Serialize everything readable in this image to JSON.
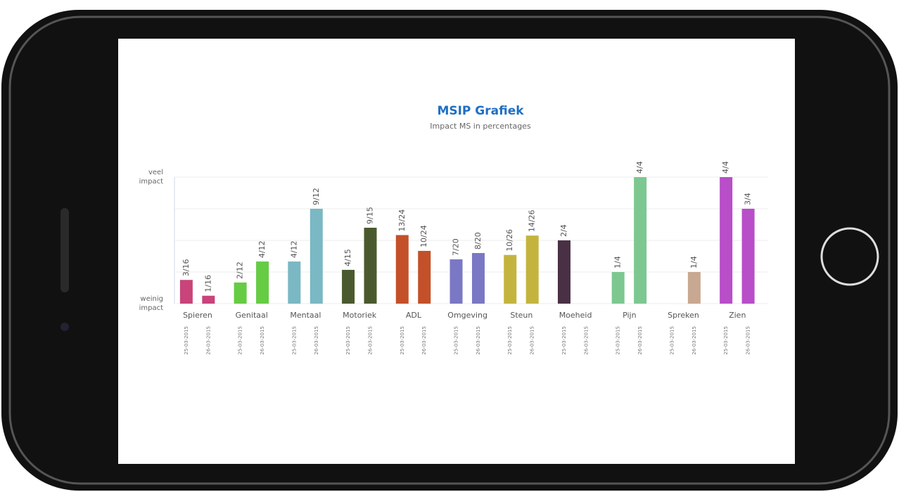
{
  "chart_data": {
    "type": "bar",
    "title": "MSIP Grafiek",
    "subtitle": "Impact MS in percentages",
    "categories": [
      "Spieren",
      "Genitaal",
      "Mentaal",
      "Motoriek",
      "ADL",
      "Omgeving",
      "Steun",
      "Moeheid",
      "Pijn",
      "Spreken",
      "Zien"
    ],
    "colors": [
      "#c8447a",
      "#66cc44",
      "#7ab8c4",
      "#4a5a2e",
      "#c4502a",
      "#7a78c4",
      "#c4b43e",
      "#4a3044",
      "#7cc890",
      "#c8a890",
      "#b84ec8"
    ],
    "series": [
      {
        "name": "25-03-2015",
        "values": [
          18.75,
          16.7,
          33.3,
          26.7,
          54.2,
          35,
          38.5,
          50,
          25,
          0,
          100
        ],
        "value_labels": [
          "3/16",
          "2/12",
          "4/12",
          "4/15",
          "13/24",
          "7/20",
          "10/26",
          "2/4",
          "1/4",
          null,
          "4/4"
        ]
      },
      {
        "name": "26-03-2015",
        "values": [
          6.25,
          33.3,
          75,
          60,
          41.7,
          40,
          53.8,
          0,
          100,
          25,
          75
        ],
        "value_labels": [
          "1/16",
          "4/12",
          "9/12",
          "9/15",
          "10/24",
          "8/20",
          "14/26",
          null,
          "4/4",
          "1/4",
          "3/4"
        ]
      }
    ],
    "ylim": [
      0,
      100
    ],
    "yticks": [
      {
        "value": 0,
        "label": "weinig impact"
      },
      {
        "value": 100,
        "label": "veel impact"
      }
    ],
    "grid_lines": [
      25,
      50,
      75
    ]
  }
}
